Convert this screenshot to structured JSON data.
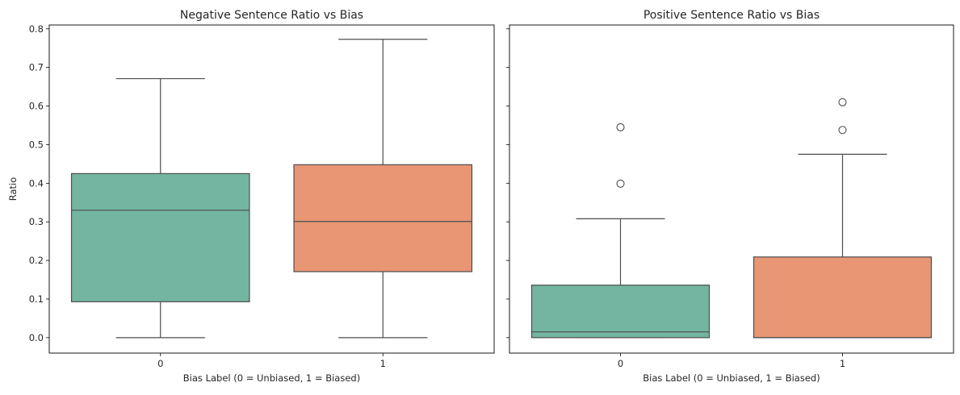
{
  "chart_data": [
    {
      "type": "box",
      "title": "Negative Sentence Ratio vs Bias",
      "xlabel": "Bias Label (0 = Unbiased, 1 = Biased)",
      "ylabel": "Ratio",
      "ylim": [
        -0.04,
        0.81
      ],
      "yticks": [
        "0.0",
        "0.1",
        "0.2",
        "0.3",
        "0.4",
        "0.5",
        "0.6",
        "0.7",
        "0.8"
      ],
      "categories": [
        "0",
        "1"
      ],
      "colors": [
        "#73b5a0",
        "#e89674"
      ],
      "boxes": [
        {
          "whislo": 0.0,
          "q1": 0.093,
          "med": 0.33,
          "q3": 0.425,
          "whishi": 0.671,
          "fliers": []
        },
        {
          "whislo": 0.0,
          "q1": 0.171,
          "med": 0.301,
          "q3": 0.448,
          "whishi": 0.773,
          "fliers": []
        }
      ]
    },
    {
      "type": "box",
      "title": "Positive Sentence Ratio vs Bias",
      "xlabel": "Bias Label (0 = Unbiased, 1 = Biased)",
      "ylabel": "",
      "ylim": [
        -0.04,
        0.81
      ],
      "categories": [
        "0",
        "1"
      ],
      "colors": [
        "#73b5a0",
        "#e89674"
      ],
      "boxes": [
        {
          "whislo": 0.0,
          "q1": 0.0,
          "med": 0.015,
          "q3": 0.136,
          "whishi": 0.308,
          "fliers": [
            0.399,
            0.545
          ]
        },
        {
          "whislo": 0.0,
          "q1": 0.0,
          "med": 0.0,
          "q3": 0.209,
          "whishi": 0.475,
          "fliers": [
            0.538,
            0.61
          ]
        }
      ]
    }
  ]
}
